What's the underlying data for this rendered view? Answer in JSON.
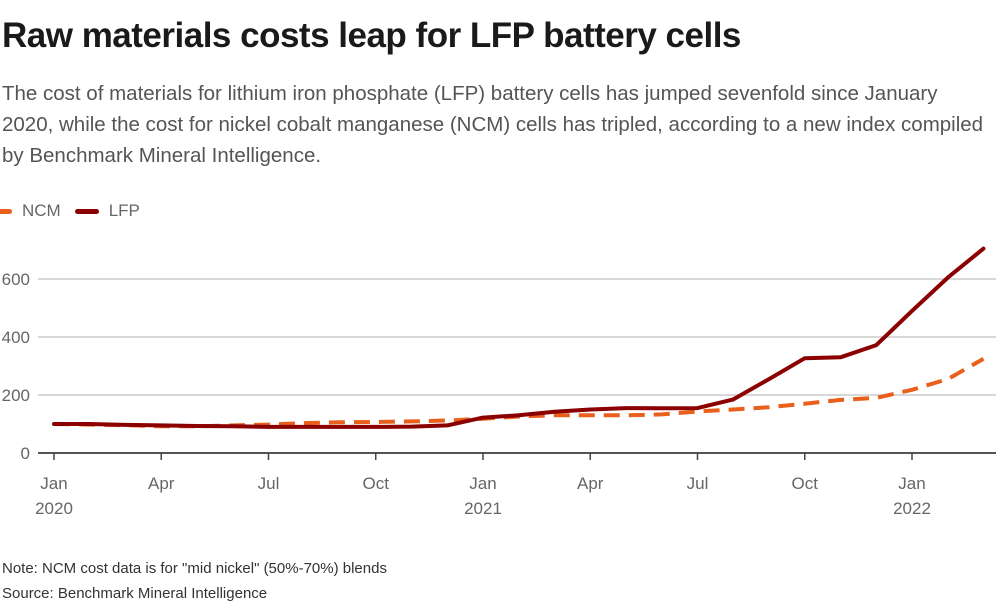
{
  "title": "Raw materials costs leap for LFP battery cells",
  "subtitle": "The cost of materials for lithium iron phosphate (LFP) battery cells has jumped sevenfold since January 2020, while the cost for nickel cobalt manganese (NCM) cells has tripled, according to a new index compiled by Benchmark Mineral Intelligence.",
  "legend": [
    {
      "name": "NCM",
      "color": "#e8601c",
      "style": "dashed"
    },
    {
      "name": "LFP",
      "color": "#8b0000",
      "style": "solid"
    }
  ],
  "notes": {
    "note": "Note: NCM cost data is for \"mid nickel\" (50%-70%) blends",
    "source": "Source: Benchmark Mineral Intelligence"
  },
  "chart_data": {
    "type": "line",
    "title": "Raw materials costs leap for LFP battery cells",
    "xlabel": "",
    "ylabel": "",
    "ylim": [
      0,
      700
    ],
    "yticks": [
      0,
      200,
      400,
      600
    ],
    "grid": true,
    "legend_position": "top-left",
    "x": [
      "2020-01",
      "2020-02",
      "2020-03",
      "2020-04",
      "2020-05",
      "2020-06",
      "2020-07",
      "2020-08",
      "2020-09",
      "2020-10",
      "2020-11",
      "2020-12",
      "2021-01",
      "2021-02",
      "2021-03",
      "2021-04",
      "2021-05",
      "2021-06",
      "2021-07",
      "2021-08",
      "2021-09",
      "2021-10",
      "2021-11",
      "2021-12",
      "2022-01",
      "2022-02",
      "2022-03"
    ],
    "xticks": [
      {
        "x": "2020-01",
        "label": "Jan",
        "sublabel": "2020"
      },
      {
        "x": "2020-04",
        "label": "Apr",
        "sublabel": ""
      },
      {
        "x": "2020-07",
        "label": "Jul",
        "sublabel": ""
      },
      {
        "x": "2020-10",
        "label": "Oct",
        "sublabel": ""
      },
      {
        "x": "2021-01",
        "label": "Jan",
        "sublabel": "2021"
      },
      {
        "x": "2021-04",
        "label": "Apr",
        "sublabel": ""
      },
      {
        "x": "2021-07",
        "label": "Jul",
        "sublabel": ""
      },
      {
        "x": "2021-10",
        "label": "Oct",
        "sublabel": ""
      },
      {
        "x": "2022-01",
        "label": "Jan",
        "sublabel": "2022"
      }
    ],
    "series": [
      {
        "name": "NCM",
        "color": "#e8601c",
        "dashed": true,
        "values": [
          100,
          98,
          96,
          92,
          92,
          95,
          98,
          103,
          106,
          107,
          109,
          112,
          118,
          126,
          130,
          130,
          130,
          133,
          143,
          150,
          158,
          170,
          183,
          190,
          218,
          255,
          325
        ]
      },
      {
        "name": "LFP",
        "color": "#8b0000",
        "dashed": false,
        "values": [
          100,
          100,
          97,
          95,
          93,
          92,
          90,
          90,
          90,
          90,
          91,
          95,
          122,
          130,
          142,
          150,
          155,
          154,
          155,
          185,
          255,
          327,
          330,
          372,
          490,
          605,
          705
        ]
      }
    ]
  }
}
